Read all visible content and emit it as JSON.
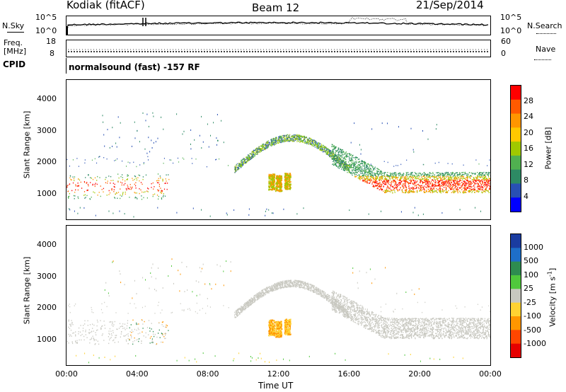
{
  "header": {
    "station": "Kodiak (fitACF)",
    "beam": "Beam 12",
    "date": "21/Sep/2014"
  },
  "noise_panel": {
    "left_label": "N.Sky",
    "left_ticks": [
      "10^5",
      "10^0"
    ],
    "right_ticks": [
      "10^5",
      "10^0"
    ],
    "right_label": "N.Search"
  },
  "freq_panel": {
    "left_label_1": "Freq.",
    "left_label_2": "[MHz]",
    "left_ticks": [
      "18",
      "8"
    ],
    "right_ticks": [
      "60",
      "0"
    ],
    "right_label": "Nave"
  },
  "cpid": {
    "label": "CPID",
    "mode": "normalsound (fast) -157 RF"
  },
  "chart_data": [
    {
      "type": "heatmap",
      "name": "power",
      "ylabel": "Slant Range [km]",
      "yticks": [
        1000,
        2000,
        3000,
        4000
      ],
      "ylim": [
        200,
        4600
      ],
      "xlim_hours": [
        0,
        24
      ],
      "colorbar": {
        "label": "Power [dB]",
        "ticks": [
          "28",
          "24",
          "20",
          "16",
          "12",
          "8",
          "4"
        ],
        "colors": [
          "#ff0000",
          "#ff5a00",
          "#ff9600",
          "#ffc800",
          "#a0c800",
          "#50b050",
          "#2d8a64",
          "#2850b4",
          "#0000ff"
        ]
      },
      "dominant_bands": [
        {
          "start_h": 0,
          "end_h": 5.8,
          "range_km": [
            900,
            1600
          ]
        },
        {
          "start_h": 16,
          "end_h": 24,
          "range_km": [
            1000,
            1700
          ]
        }
      ]
    },
    {
      "type": "heatmap",
      "name": "velocity",
      "ylabel": "Slant Range [km]",
      "yticks": [
        1000,
        2000,
        3000,
        4000
      ],
      "ylim": [
        200,
        4600
      ],
      "xlim_hours": [
        0,
        24
      ],
      "colorbar": {
        "label": "Velocity [m s",
        "label_sup": "-1",
        "label_close": "]",
        "ticks": [
          "1000",
          "500",
          "100",
          "25",
          "-25",
          "-100",
          "-500",
          "-1000"
        ],
        "colors": [
          "#1a3ca0",
          "#1e6ec8",
          "#2e8c50",
          "#50c83c",
          "#c8c8c0",
          "#ffd232",
          "#ff9600",
          "#ff4600",
          "#e60000"
        ]
      }
    }
  ],
  "x_axis": {
    "ticks": [
      "00:00",
      "04:00",
      "08:00",
      "12:00",
      "16:00",
      "20:00",
      "00:00"
    ],
    "label": "Time UT"
  }
}
